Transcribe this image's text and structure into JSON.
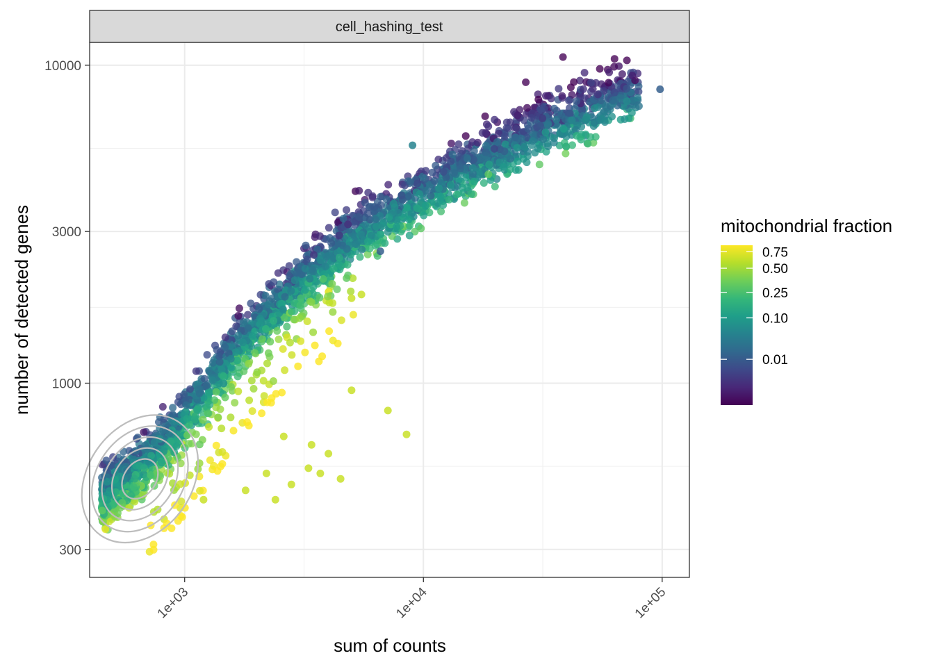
{
  "chart_data": {
    "type": "scatter",
    "facet": "cell_hashing_test",
    "xlabel": "sum of counts",
    "ylabel": "number of detected genes",
    "x_scale": "log10",
    "y_scale": "log10",
    "xlim": [
      400,
      130000
    ],
    "ylim": [
      245,
      11800
    ],
    "x_ticks": [
      {
        "value": 1000,
        "label": "1e+03"
      },
      {
        "value": 10000,
        "label": "1e+04"
      },
      {
        "value": 100000,
        "label": "1e+05"
      }
    ],
    "y_ticks": [
      {
        "value": 300,
        "label": "300"
      },
      {
        "value": 1000,
        "label": "1000"
      },
      {
        "value": 3000,
        "label": "3000"
      },
      {
        "value": 10000,
        "label": "10000"
      }
    ],
    "legend": {
      "title": "mitochondrial fraction",
      "breaks": [
        {
          "value": 0.75,
          "label": "0.75"
        },
        {
          "value": 0.5,
          "label": "0.50"
        },
        {
          "value": 0.25,
          "label": "0.25"
        },
        {
          "value": 0.1,
          "label": "0.10"
        },
        {
          "value": 0.01,
          "label": "0.01"
        }
      ],
      "palette": [
        "#440154",
        "#482878",
        "#3e4989",
        "#31688e",
        "#26828e",
        "#1f9e89",
        "#35b779",
        "#6ece58",
        "#b5de2b",
        "#fde725"
      ]
    },
    "trend": {
      "description": "genes rise with counts along a curved band; band spans roughly these (counts, genes) pairs",
      "band": [
        [
          450,
          430
        ],
        [
          700,
          560
        ],
        [
          1000,
          760
        ],
        [
          1500,
          1150
        ],
        [
          2000,
          1500
        ],
        [
          3000,
          2050
        ],
        [
          5000,
          2850
        ],
        [
          8000,
          3550
        ],
        [
          12000,
          4350
        ],
        [
          20000,
          5300
        ],
        [
          35000,
          6600
        ],
        [
          60000,
          7900
        ],
        [
          80000,
          8400
        ]
      ],
      "outliers": [
        [
          7100,
          820
        ],
        [
          8500,
          690
        ],
        [
          5000,
          950
        ],
        [
          4000,
          600
        ],
        [
          3300,
          540
        ],
        [
          2800,
          480
        ],
        [
          2400,
          430
        ],
        [
          1800,
          460
        ],
        [
          1200,
          430
        ],
        [
          4500,
          500
        ],
        [
          2200,
          520
        ],
        [
          3700,
          520
        ],
        [
          3400,
          640
        ],
        [
          2600,
          680
        ],
        [
          98000,
          8400
        ],
        [
          9000,
          5600
        ],
        [
          6600,
          2600
        ],
        [
          5500,
          1900
        ],
        [
          5000,
          1850
        ]
      ]
    },
    "density_contours": {
      "center": [
        650,
        500
      ],
      "levels": 5
    }
  }
}
